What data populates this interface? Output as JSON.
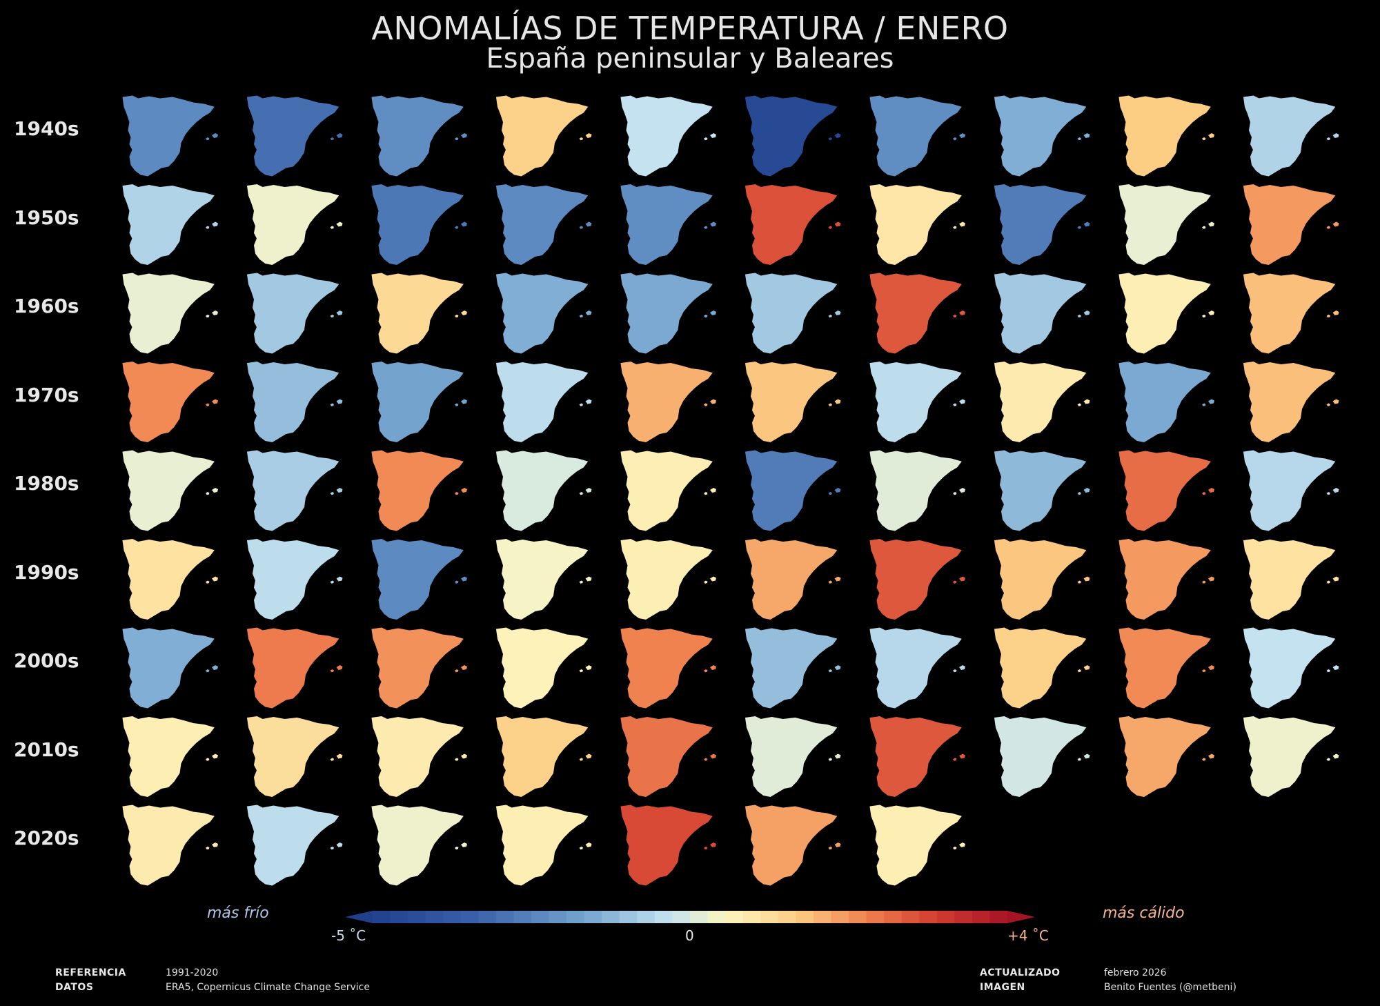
{
  "title": "ANOMALÍAS DE TEMPERATURA / ENERO",
  "subtitle": "España peninsular y Baleares",
  "legend": {
    "cold_label": "más frío",
    "warm_label": "más cálido",
    "min_label": "-5 ˚C",
    "zero_label": "0",
    "max_label": "+4 ˚C"
  },
  "footer": {
    "ref_key": "REFERENCIA",
    "ref_val": "1991-2020",
    "data_key": "DATOS",
    "data_val": "ERA5, Copernicus Climate Change Service",
    "updated_key": "ACTUALIZADO",
    "updated_val": "febrero 2026",
    "image_key": "IMAGEN",
    "image_val": "Benito Fuentes (@metbeni)"
  },
  "colors": {
    "cold": "#2b5aa3",
    "neutral": "#fdf6c0",
    "warm": "#c42a2a",
    "background": "#000000"
  },
  "chart_data": {
    "type": "heatmap",
    "description_units": "˚C anomaly vs 1991-2020",
    "rows": [
      "1940s",
      "1950s",
      "1960s",
      "1970s",
      "1980s",
      "1990s",
      "2000s",
      "2010s",
      "2020s"
    ],
    "columns": [
      0,
      1,
      2,
      3,
      4,
      5,
      6,
      7,
      8,
      9
    ],
    "vmin": -5,
    "vmax": 4,
    "values": [
      [
        -2.6,
        -3.2,
        -2.5,
        0.9,
        -0.8,
        -4.6,
        -2.5,
        -1.8,
        1.0,
        -1.1
      ],
      [
        -1.1,
        -0.2,
        -3.0,
        -2.6,
        -2.5,
        2.7,
        0.4,
        -2.9,
        -0.3,
        1.7
      ],
      [
        -0.3,
        -1.3,
        0.7,
        -1.8,
        -1.9,
        -1.3,
        2.6,
        -1.3,
        0.2,
        1.2
      ],
      [
        1.9,
        -1.5,
        -2.0,
        -0.9,
        1.4,
        1.1,
        -0.9,
        0.3,
        -1.9,
        1.2
      ],
      [
        -0.3,
        -1.2,
        1.9,
        -0.5,
        0.2,
        -2.9,
        -0.4,
        -1.6,
        2.3,
        -1.0
      ],
      [
        0.5,
        -0.9,
        -2.6,
        -0.1,
        0.2,
        1.5,
        2.6,
        1.1,
        1.7,
        0.5
      ],
      [
        -1.8,
        2.1,
        1.8,
        0.1,
        2.0,
        -1.5,
        -1.0,
        0.9,
        1.9,
        -0.8
      ],
      [
        0.2,
        0.6,
        0.3,
        0.9,
        2.2,
        -0.4,
        2.6,
        -0.6,
        1.5,
        -0.2
      ],
      [
        0.3,
        -0.9,
        -0.2,
        0.2,
        2.8,
        1.6,
        0.2
      ]
    ]
  }
}
